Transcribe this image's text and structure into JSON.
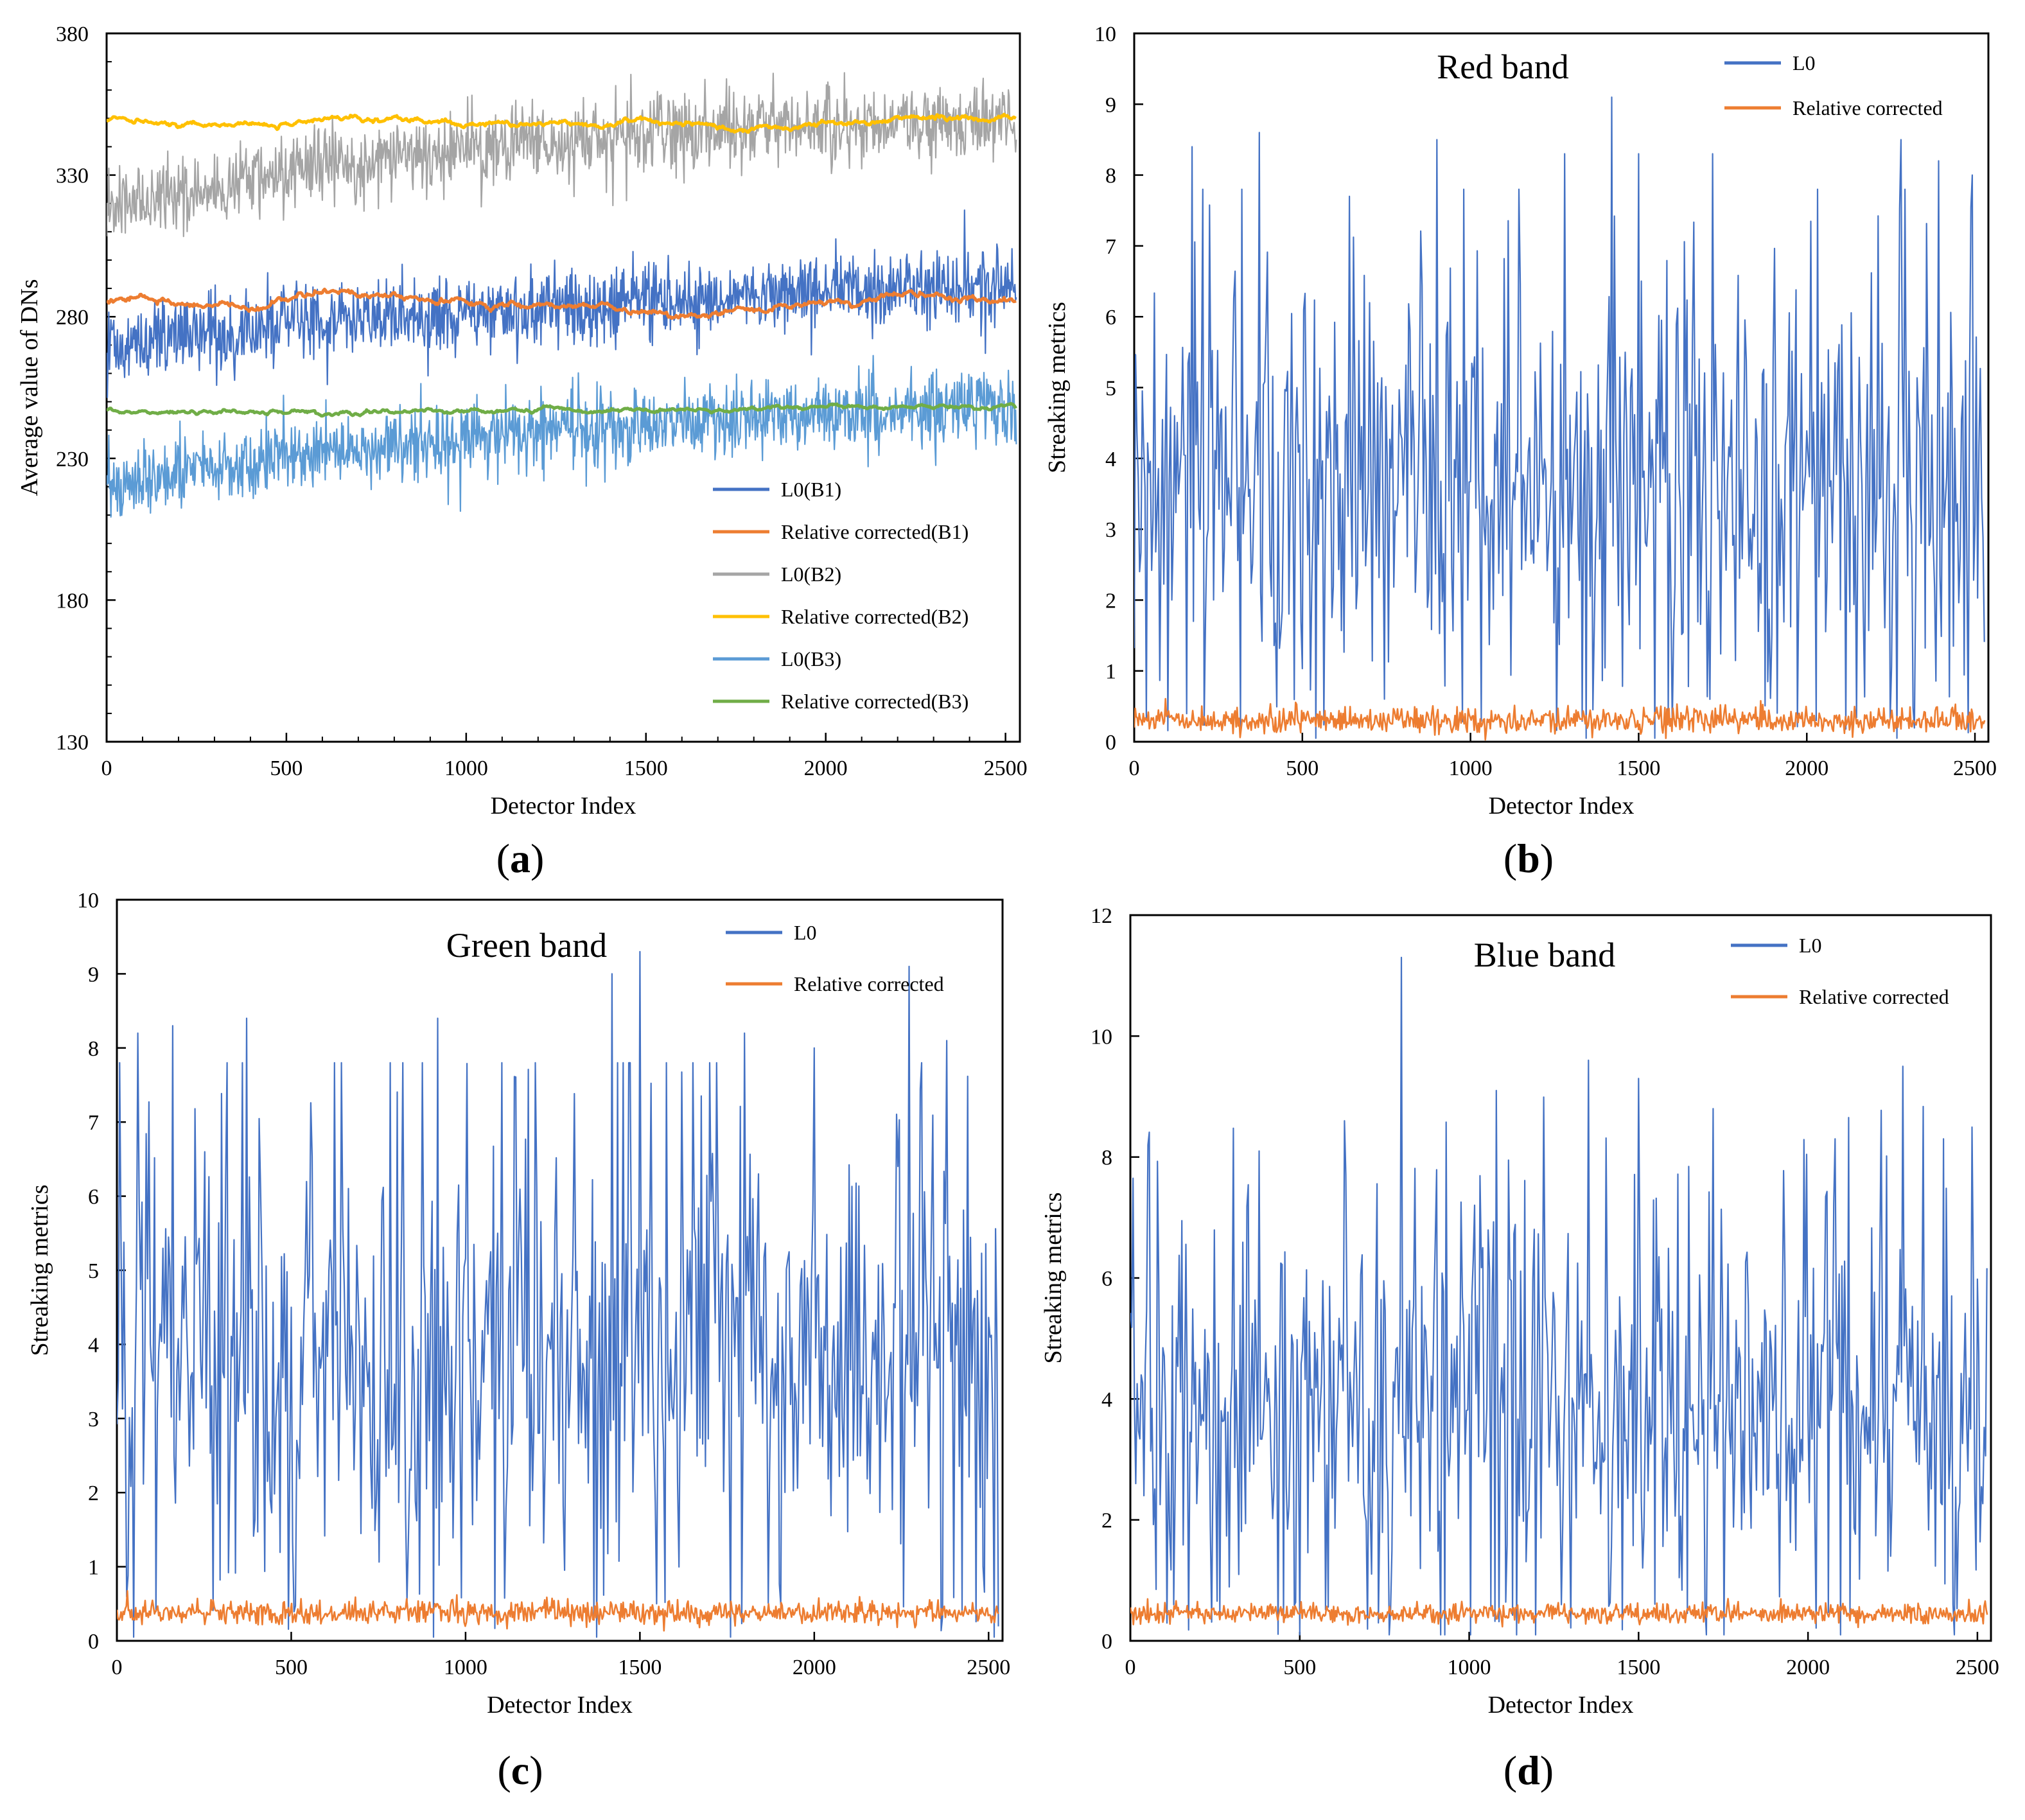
{
  "figure": {
    "captions": {
      "a": "a",
      "b": "b",
      "c": "c",
      "d": "d"
    }
  },
  "colors": {
    "l0_b1": "#4472C4",
    "rel_b1": "#ED7D31",
    "l0_b2": "#A5A5A5",
    "rel_b2": "#FFC000",
    "l0_b3": "#5B9BD5",
    "rel_b3": "#70AD47",
    "l0": "#4472C4",
    "rel": "#ED7D31"
  },
  "chart_data": [
    {
      "id": "a",
      "type": "line",
      "title": "",
      "xlabel": "Detector Index",
      "ylabel": "Average value of DNs",
      "xlim": [
        0,
        2540
      ],
      "ylim": [
        130,
        380
      ],
      "xticks": [
        0,
        500,
        1000,
        1500,
        2000,
        2500
      ],
      "yticks": [
        130,
        180,
        230,
        280,
        330,
        380
      ],
      "legend_position": "bottom-right",
      "series": [
        {
          "name": "L0(B1)",
          "style": "noisy",
          "trend": [
            [
              0,
              270
            ],
            [
              500,
              277
            ],
            [
              1000,
              281
            ],
            [
              1500,
              285
            ],
            [
              2000,
              289
            ],
            [
              2540,
              291
            ]
          ],
          "noise": 7,
          "color_key": "l0_b1"
        },
        {
          "name": "Relative corrected(B1)",
          "style": "smooth",
          "trend": [
            [
              0,
              286
            ],
            [
              400,
              284
            ],
            [
              650,
              289
            ],
            [
              1000,
              284
            ],
            [
              1500,
              283
            ],
            [
              1580,
              280
            ],
            [
              1800,
              282
            ],
            [
              2200,
              287
            ],
            [
              2540,
              286
            ]
          ],
          "noise": 1.2,
          "color_key": "rel_b1"
        },
        {
          "name": "L0(B2)",
          "style": "noisy",
          "trend": [
            [
              0,
              318
            ],
            [
              500,
              331
            ],
            [
              1000,
              339
            ],
            [
              1500,
              345
            ],
            [
              2000,
              348
            ],
            [
              2540,
              350
            ]
          ],
          "noise": 7,
          "color_key": "l0_b2"
        },
        {
          "name": "Relative corrected(B2)",
          "style": "smooth",
          "trend": [
            [
              0,
              349
            ],
            [
              450,
              347
            ],
            [
              650,
              351
            ],
            [
              1000,
              348
            ],
            [
              1500,
              349
            ],
            [
              1750,
              346
            ],
            [
              2200,
              350
            ],
            [
              2540,
              350
            ]
          ],
          "noise": 1.0,
          "color_key": "rel_b2"
        },
        {
          "name": "L0(B3)",
          "style": "noisy",
          "trend": [
            [
              0,
              220
            ],
            [
              500,
              231
            ],
            [
              1000,
              238
            ],
            [
              1500,
              242
            ],
            [
              2000,
              246
            ],
            [
              2540,
              248
            ]
          ],
          "noise": 7,
          "color_key": "l0_b3"
        },
        {
          "name": "Relative corrected(B3)",
          "style": "smooth",
          "trend": [
            [
              0,
              247
            ],
            [
              500,
              246
            ],
            [
              1000,
              247
            ],
            [
              1500,
              247
            ],
            [
              2000,
              248
            ],
            [
              2540,
              248
            ]
          ],
          "noise": 0.8,
          "color_key": "rel_b3"
        }
      ]
    },
    {
      "id": "b",
      "type": "line",
      "title": "Red band",
      "xlabel": "Detector Index",
      "ylabel": "Streaking metrics",
      "xlim": [
        0,
        2540
      ],
      "ylim": [
        0,
        10
      ],
      "xticks": [
        0,
        500,
        1000,
        1500,
        2000,
        2500
      ],
      "yticks": [
        0,
        1,
        2,
        3,
        4,
        5,
        6,
        7,
        8,
        9,
        10
      ],
      "legend_position": "top-right",
      "series": [
        {
          "name": "L0",
          "style": "spiky",
          "mean": 3.6,
          "spread": 1.5,
          "min": 0.05,
          "peaks": [
            [
              1420,
              9.1
            ],
            [
              370,
              8.6
            ],
            [
              170,
              8.4
            ],
            [
              2280,
              8.5
            ],
            [
              900,
              8.5
            ],
            [
              1720,
              8.3
            ],
            [
              1500,
              8.3
            ],
            [
              2390,
              8.2
            ],
            [
              1280,
              8.3
            ],
            [
              2490,
              8.0
            ],
            [
              640,
              7.7
            ]
          ],
          "color_key": "l0"
        },
        {
          "name": "Relative corrected",
          "style": "flat",
          "mean": 0.3,
          "noise": 0.09,
          "color_key": "rel"
        }
      ]
    },
    {
      "id": "c",
      "type": "line",
      "title": "Green band",
      "xlabel": "Detector Index",
      "ylabel": "Streaking metrics",
      "xlim": [
        0,
        2540
      ],
      "ylim": [
        0,
        10
      ],
      "xticks": [
        0,
        500,
        1000,
        1500,
        2000,
        2500
      ],
      "yticks": [
        0,
        1,
        2,
        3,
        4,
        5,
        6,
        7,
        8,
        9,
        10
      ],
      "legend_position": "top-right",
      "series": [
        {
          "name": "L0",
          "style": "spiky",
          "mean": 3.7,
          "spread": 1.5,
          "min": 0.05,
          "peaks": [
            [
              1500,
              9.3
            ],
            [
              2270,
              9.1
            ],
            [
              1420,
              9.0
            ],
            [
              370,
              8.4
            ],
            [
              160,
              8.3
            ],
            [
              920,
              8.4
            ],
            [
              2380,
              8.1
            ],
            [
              1800,
              8.2
            ],
            [
              60,
              8.2
            ],
            [
              2000,
              8.0
            ]
          ],
          "color_key": "l0"
        },
        {
          "name": "Relative corrected",
          "style": "flat",
          "mean": 0.38,
          "noise": 0.08,
          "color_key": "rel"
        }
      ]
    },
    {
      "id": "d",
      "type": "line",
      "title": "Blue band",
      "xlabel": "Detector Index",
      "ylabel": "Streaking metrics",
      "xlim": [
        0,
        2540
      ],
      "ylim": [
        0,
        12
      ],
      "xticks": [
        0,
        500,
        1000,
        1500,
        2000,
        2500
      ],
      "yticks": [
        0,
        2,
        4,
        6,
        8,
        10,
        12
      ],
      "legend_position": "top-right",
      "series": [
        {
          "name": "L0",
          "style": "spiky",
          "mean": 3.7,
          "spread": 1.6,
          "min": 0.1,
          "peaks": [
            [
              800,
              11.3
            ],
            [
              1350,
              9.6
            ],
            [
              2280,
              9.5
            ],
            [
              1500,
              9.3
            ],
            [
              1080,
              9.1
            ],
            [
              1720,
              8.8
            ],
            [
              2400,
              8.3
            ],
            [
              2080,
              8.3
            ],
            [
              50,
              8.2
            ],
            [
              380,
              8.1
            ],
            [
              630,
              8.6
            ]
          ],
          "color_key": "l0"
        },
        {
          "name": "Relative corrected",
          "style": "flat",
          "mean": 0.45,
          "noise": 0.08,
          "color_key": "rel"
        }
      ]
    }
  ]
}
